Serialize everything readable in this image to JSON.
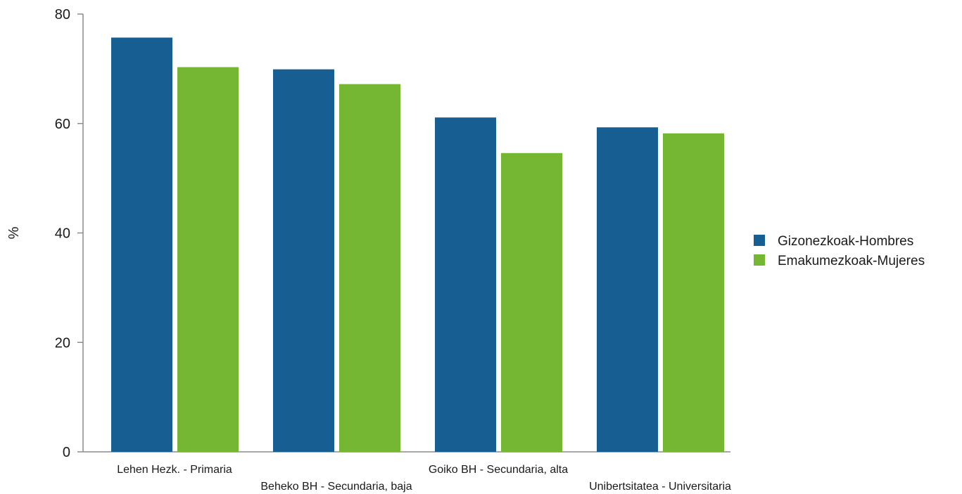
{
  "chart_data": {
    "type": "bar",
    "title": "",
    "xlabel": "",
    "ylabel": "%",
    "ylim": [
      0,
      80
    ],
    "yticks": [
      0,
      20,
      40,
      60,
      80
    ],
    "grid": false,
    "legend_position": "right",
    "categories": [
      "Lehen Hezk. - Primaria",
      "Beheko BH - Secundaria, baja",
      "Goiko BH - Secundaria, alta",
      "Unibertsitatea - Universitaria"
    ],
    "series": [
      {
        "name": "Gizonezkoak-Hombres",
        "color": "#175e92",
        "values": [
          75.7,
          69.9,
          61.1,
          59.3
        ]
      },
      {
        "name": "Emakumezkoak-Mujeres",
        "color": "#75b633",
        "values": [
          70.3,
          67.2,
          54.6,
          58.2
        ]
      }
    ]
  }
}
